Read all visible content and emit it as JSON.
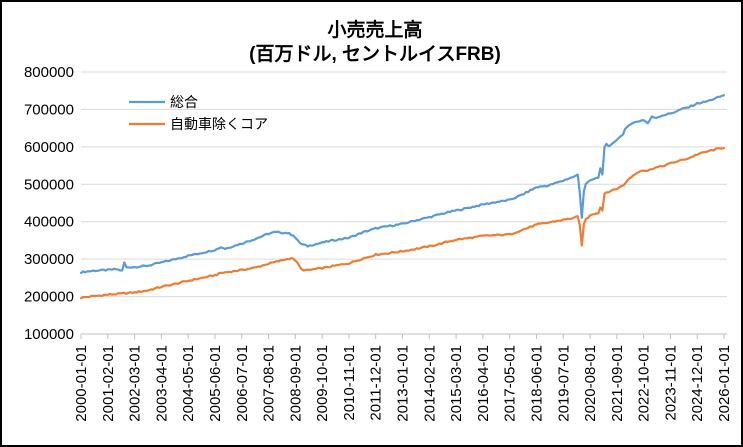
{
  "window": {
    "background": "#FFFFFF",
    "border_color": "#000000"
  },
  "title": {
    "line1": "小売売上高",
    "line2": "(百万ドル, セントルイスFRB)"
  },
  "legend": {
    "position": "top-left-inside",
    "items": [
      {
        "label": "総合",
        "color": "#5B9BD5"
      },
      {
        "label": "自動車除くコア",
        "color": "#ED7D31"
      }
    ]
  },
  "colors": {
    "gridline": "#D9D9D9",
    "axis_line": "#BFBFBF",
    "tick_text": "#000000",
    "series_total": "#5B9BD5",
    "series_core": "#ED7D31"
  },
  "chart_data": {
    "type": "line",
    "title": "小売売上高 (百万ドル, セントルイスFRB)",
    "unit": "百万ドル",
    "source": "セントルイスFRB",
    "x_interval": "monthly",
    "x_start": "2000-01",
    "x_end": "2026-01",
    "x_tick_labels": [
      "2000-01-01",
      "2001-02-01",
      "2002-03-01",
      "2003-04-01",
      "2004-05-01",
      "2005-06-01",
      "2006-07-01",
      "2007-08-01",
      "2008-09-01",
      "2009-10-01",
      "2010-11-01",
      "2011-12-01",
      "2013-01-01",
      "2014-02-01",
      "2015-03-01",
      "2016-04-01",
      "2017-05-01",
      "2018-06-01",
      "2019-07-01",
      "2020-08-01",
      "2021-09-01",
      "2022-10-01",
      "2023-11-01",
      "2024-12-01",
      "2026-01-01"
    ],
    "y_ticks": [
      100000,
      200000,
      300000,
      400000,
      500000,
      600000,
      700000,
      800000
    ],
    "ylim": [
      100000,
      800000
    ],
    "grid": "horizontal",
    "legend_position": "top-left",
    "interpolation": "monthly-linear-between-anchors",
    "jitter": 2000,
    "series": [
      {
        "name": "総合",
        "color": "#5B9BD5",
        "anchors": [
          [
            "2000-01",
            265000
          ],
          [
            "2000-07",
            269000
          ],
          [
            "2001-02",
            271000
          ],
          [
            "2001-06",
            273000
          ],
          [
            "2001-09",
            269000
          ],
          [
            "2001-10",
            291000
          ],
          [
            "2001-11",
            278000
          ],
          [
            "2002-03",
            279000
          ],
          [
            "2002-09",
            282000
          ],
          [
            "2003-04",
            291000
          ],
          [
            "2003-10",
            299000
          ],
          [
            "2004-05",
            309000
          ],
          [
            "2004-11",
            316000
          ],
          [
            "2005-06",
            325000
          ],
          [
            "2005-09",
            332000
          ],
          [
            "2005-11",
            328000
          ],
          [
            "2006-07",
            342000
          ],
          [
            "2007-02",
            355000
          ],
          [
            "2007-08",
            368000
          ],
          [
            "2007-11",
            372000
          ],
          [
            "2008-05",
            370000
          ],
          [
            "2008-08",
            364000
          ],
          [
            "2008-10",
            350000
          ],
          [
            "2008-12",
            340000
          ],
          [
            "2009-03",
            335000
          ],
          [
            "2009-06",
            339000
          ],
          [
            "2009-10",
            344000
          ],
          [
            "2010-03",
            350000
          ],
          [
            "2010-11",
            357000
          ],
          [
            "2011-06",
            372000
          ],
          [
            "2011-12",
            382000
          ],
          [
            "2012-06",
            388000
          ],
          [
            "2013-01",
            394000
          ],
          [
            "2013-07",
            403000
          ],
          [
            "2014-02",
            412000
          ],
          [
            "2014-08",
            421000
          ],
          [
            "2015-03",
            430000
          ],
          [
            "2015-09",
            437000
          ],
          [
            "2016-04",
            446000
          ],
          [
            "2016-10",
            452000
          ],
          [
            "2017-05",
            458000
          ],
          [
            "2017-11",
            472000
          ],
          [
            "2018-06",
            492000
          ],
          [
            "2018-12",
            497000
          ],
          [
            "2019-07",
            510000
          ],
          [
            "2019-12",
            520000
          ],
          [
            "2020-02",
            525000
          ],
          [
            "2020-03",
            480000
          ],
          [
            "2020-04",
            412000
          ],
          [
            "2020-05",
            482000
          ],
          [
            "2020-06",
            502000
          ],
          [
            "2020-09",
            512000
          ],
          [
            "2020-12",
            518000
          ],
          [
            "2021-01",
            542000
          ],
          [
            "2021-02",
            528000
          ],
          [
            "2021-03",
            598000
          ],
          [
            "2021-04",
            606000
          ],
          [
            "2021-05",
            600000
          ],
          [
            "2021-07",
            611000
          ],
          [
            "2021-09",
            618000
          ],
          [
            "2021-10",
            626000
          ],
          [
            "2021-12",
            631000
          ],
          [
            "2022-01",
            646000
          ],
          [
            "2022-03",
            660000
          ],
          [
            "2022-06",
            666000
          ],
          [
            "2022-10",
            672000
          ],
          [
            "2022-12",
            663000
          ],
          [
            "2023-02",
            680000
          ],
          [
            "2023-04",
            678000
          ],
          [
            "2023-07",
            684000
          ],
          [
            "2023-11",
            689000
          ],
          [
            "2024-01",
            693000
          ],
          [
            "2024-04",
            700000
          ],
          [
            "2024-08",
            706000
          ],
          [
            "2024-12",
            716000
          ],
          [
            "2025-03",
            719000
          ],
          [
            "2025-06",
            724000
          ],
          [
            "2025-09",
            730000
          ],
          [
            "2026-01",
            738000
          ]
        ]
      },
      {
        "name": "自動車除くコア",
        "color": "#ED7D31",
        "anchors": [
          [
            "2000-01",
            197000
          ],
          [
            "2000-07",
            201000
          ],
          [
            "2001-02",
            205000
          ],
          [
            "2001-09",
            208000
          ],
          [
            "2002-03",
            211000
          ],
          [
            "2002-09",
            216000
          ],
          [
            "2003-04",
            226000
          ],
          [
            "2003-10",
            233000
          ],
          [
            "2004-05",
            242000
          ],
          [
            "2004-11",
            249000
          ],
          [
            "2005-06",
            257000
          ],
          [
            "2005-09",
            263000
          ],
          [
            "2006-07",
            271000
          ],
          [
            "2007-02",
            278000
          ],
          [
            "2007-08",
            288000
          ],
          [
            "2008-02",
            296000
          ],
          [
            "2008-07",
            303000
          ],
          [
            "2008-09",
            297000
          ],
          [
            "2008-10",
            289000
          ],
          [
            "2008-12",
            272000
          ],
          [
            "2009-03",
            270000
          ],
          [
            "2009-06",
            273000
          ],
          [
            "2009-10",
            276000
          ],
          [
            "2010-03",
            281000
          ],
          [
            "2010-11",
            289000
          ],
          [
            "2011-06",
            302000
          ],
          [
            "2011-12",
            312000
          ],
          [
            "2012-06",
            316000
          ],
          [
            "2013-01",
            321000
          ],
          [
            "2013-07",
            327000
          ],
          [
            "2014-02",
            334000
          ],
          [
            "2014-08",
            342000
          ],
          [
            "2014-12",
            348000
          ],
          [
            "2015-03",
            352000
          ],
          [
            "2015-09",
            356000
          ],
          [
            "2016-04",
            362000
          ],
          [
            "2016-10",
            364000
          ],
          [
            "2017-05",
            366000
          ],
          [
            "2017-11",
            378000
          ],
          [
            "2018-06",
            392000
          ],
          [
            "2018-12",
            398000
          ],
          [
            "2019-07",
            405000
          ],
          [
            "2019-12",
            410000
          ],
          [
            "2020-02",
            413000
          ],
          [
            "2020-03",
            392000
          ],
          [
            "2020-04",
            338000
          ],
          [
            "2020-05",
            392000
          ],
          [
            "2020-06",
            407000
          ],
          [
            "2020-09",
            420000
          ],
          [
            "2020-12",
            424000
          ],
          [
            "2021-01",
            438000
          ],
          [
            "2021-02",
            431000
          ],
          [
            "2021-03",
            475000
          ],
          [
            "2021-04",
            479000
          ],
          [
            "2021-06",
            482000
          ],
          [
            "2021-09",
            488000
          ],
          [
            "2021-12",
            497000
          ],
          [
            "2022-03",
            515000
          ],
          [
            "2022-06",
            528000
          ],
          [
            "2022-09",
            538000
          ],
          [
            "2022-12",
            536000
          ],
          [
            "2023-03",
            544000
          ],
          [
            "2023-07",
            548000
          ],
          [
            "2023-11",
            556000
          ],
          [
            "2024-03",
            562000
          ],
          [
            "2024-08",
            570000
          ],
          [
            "2024-12",
            580000
          ],
          [
            "2025-04",
            586000
          ],
          [
            "2025-08",
            592000
          ],
          [
            "2026-01",
            598000
          ]
        ]
      }
    ]
  }
}
